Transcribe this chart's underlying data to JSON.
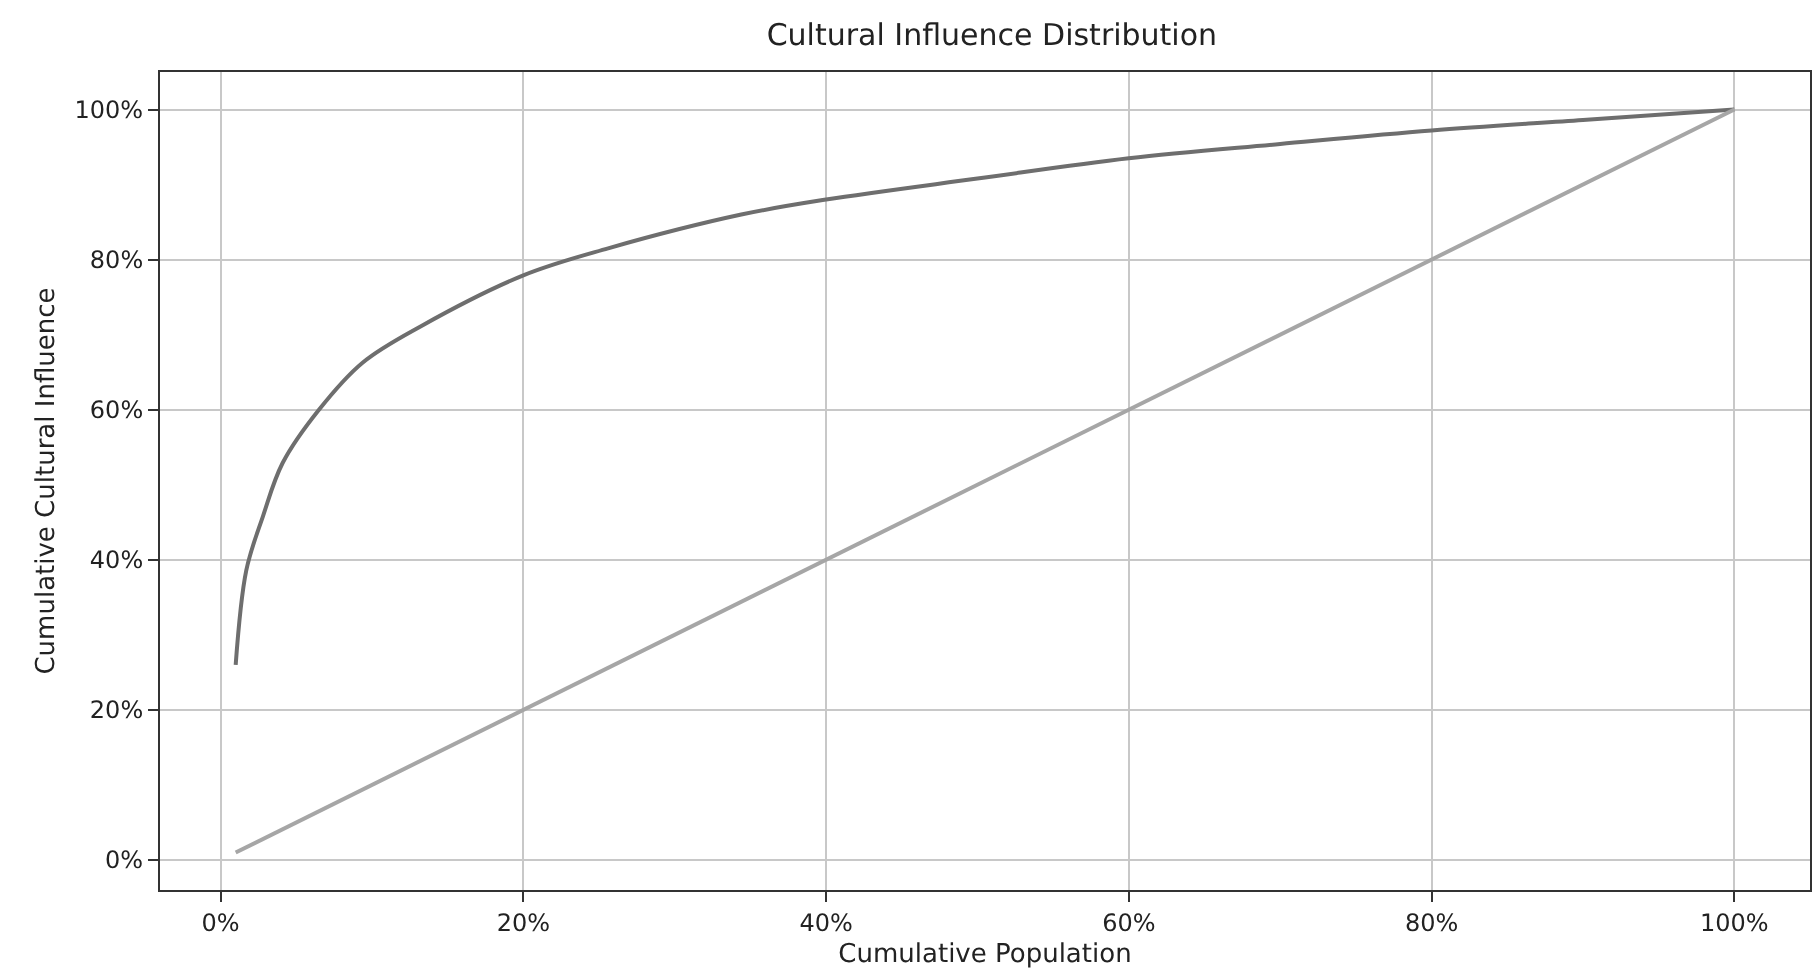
{
  "chart_data": {
    "type": "line",
    "title": "Cultural Influence Distribution",
    "xlabel": "Cumulative Population",
    "ylabel": "Cumulative Cultural Influence",
    "series": [
      {
        "color": "#6e6e6e",
        "x": [
          1,
          1.7,
          2.8,
          4.1,
          6.5,
          9.4,
          13.3,
          20,
          25.6,
          34.4,
          40,
          50,
          60,
          70,
          80,
          90,
          100
        ],
        "values": [
          26,
          38.6,
          45.8,
          52.9,
          60,
          66.3,
          71.2,
          77.9,
          81.5,
          86,
          88,
          90.8,
          93.5,
          95.4,
          97.2,
          98.6,
          100
        ]
      },
      {
        "color": "#a6a6a6",
        "x": [
          1,
          100
        ],
        "values": [
          1,
          100
        ]
      }
    ],
    "xlim": [
      -4,
      105
    ],
    "ylim": [
      -4,
      105
    ],
    "xticks": [
      {
        "value": 0,
        "label": "0%"
      },
      {
        "value": 20,
        "label": "20%"
      },
      {
        "value": 40,
        "label": "40%"
      },
      {
        "value": 60,
        "label": "60%"
      },
      {
        "value": 80,
        "label": "80%"
      },
      {
        "value": 100,
        "label": "100%"
      }
    ],
    "yticks": [
      {
        "value": 0,
        "label": "0%"
      },
      {
        "value": 20,
        "label": "20%"
      },
      {
        "value": 40,
        "label": "40%"
      },
      {
        "value": 60,
        "label": "60%"
      },
      {
        "value": 80,
        "label": "80%"
      },
      {
        "value": 100,
        "label": "100%"
      }
    ],
    "grid": true,
    "marker": "none",
    "line_style": "solid"
  }
}
